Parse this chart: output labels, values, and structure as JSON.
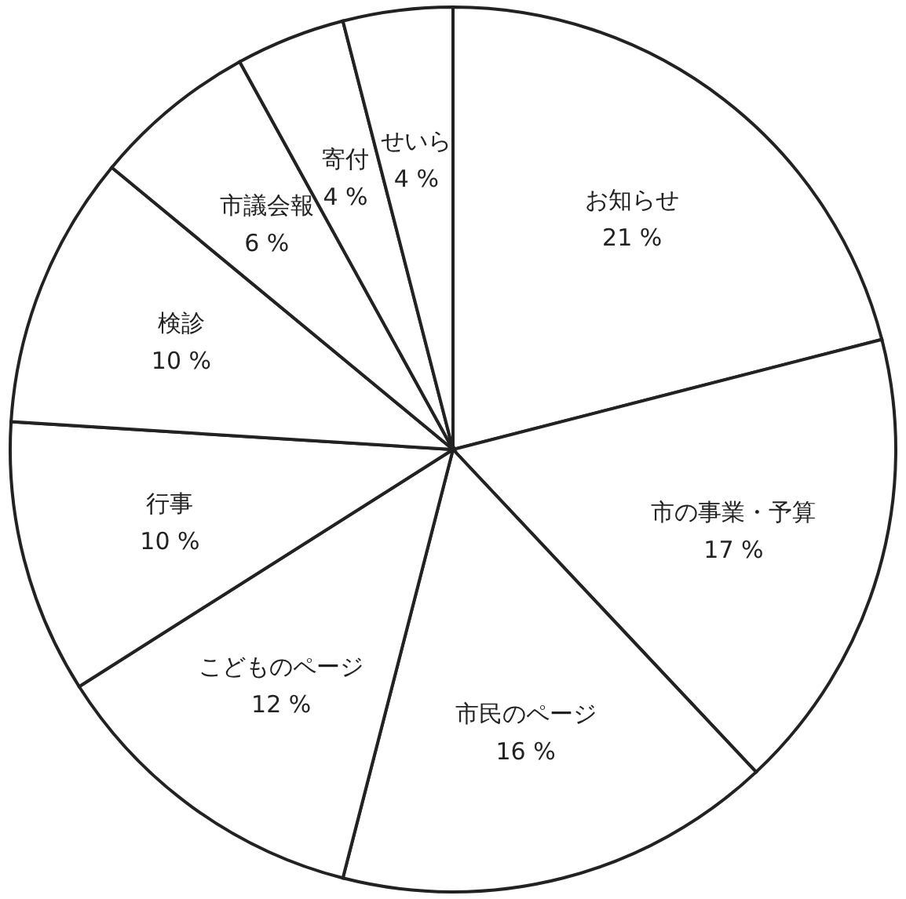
{
  "chart_data": {
    "type": "pie",
    "categories": [
      "お知らせ",
      "市の事業・予算",
      "市民のページ",
      "こどものページ",
      "行事",
      "検診",
      "市議会報",
      "寄付",
      "せいら"
    ],
    "values": [
      21,
      17,
      16,
      12,
      10,
      10,
      6,
      4,
      4
    ],
    "colors": [
      "#ffffff",
      "#ffffff",
      "#ffffff",
      "#ffffff",
      "#ffffff",
      "#ffffff",
      "#ffffff",
      "#ffffff",
      "#ffffff"
    ],
    "value_labels": [
      "21 %",
      "17 %",
      "16 %",
      "12 %",
      "10 %",
      "10 %",
      "6 %",
      "4 %",
      "4 %"
    ]
  }
}
